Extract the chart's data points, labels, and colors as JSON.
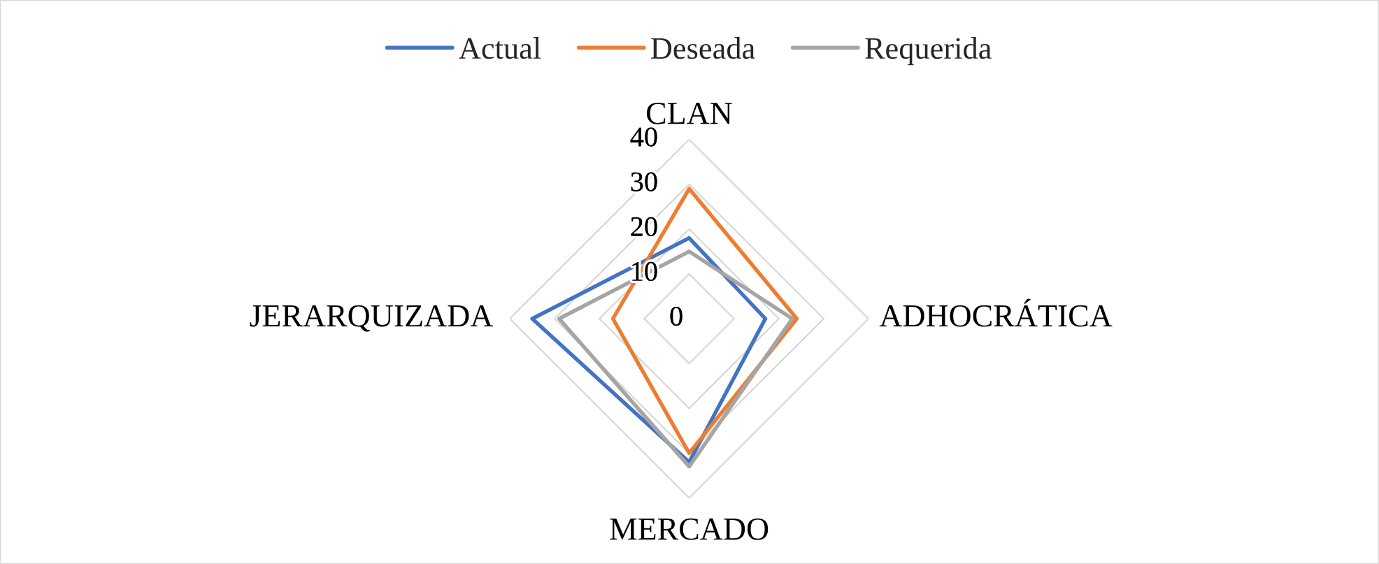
{
  "chart_data": {
    "type": "radar",
    "categories": [
      "CLAN",
      "ADHOCRÁTICA",
      "MERCADO",
      "JERARQUIZADA"
    ],
    "series": [
      {
        "name": "Actual",
        "color": "#4472c4",
        "values": [
          18,
          17,
          32,
          35
        ]
      },
      {
        "name": "Deseada",
        "color": "#ed7d31",
        "values": [
          29,
          24,
          30,
          17
        ]
      },
      {
        "name": "Requerida",
        "color": "#a5a5a5",
        "values": [
          15,
          23,
          33,
          29
        ]
      }
    ],
    "ylim": [
      0,
      40
    ],
    "yticks": [
      0,
      10,
      20,
      30,
      40
    ],
    "grid": true,
    "legend": "top",
    "line_style": "solid"
  }
}
